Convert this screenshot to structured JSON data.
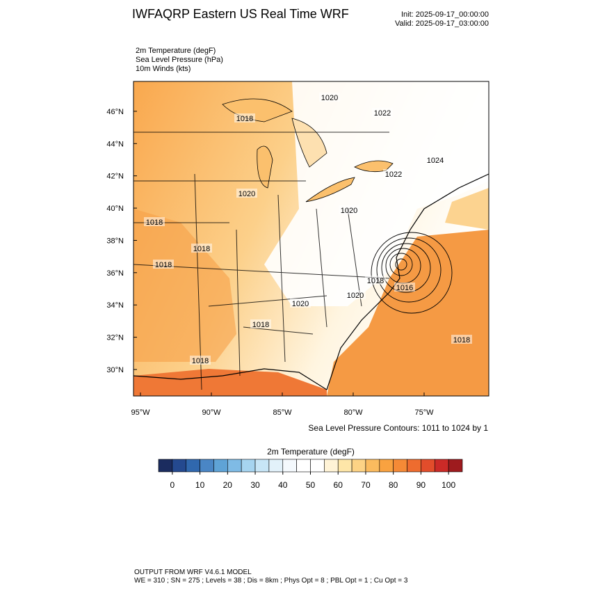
{
  "header": {
    "title": "IWFAQRP Eastern US Real Time WRF",
    "init": "Init: 2025-09-17_00:00:00",
    "valid": "Valid: 2025-09-17_03:00:00"
  },
  "fields": [
    "2m Temperature   (degF)",
    "Sea Level Pressure   (hPa)",
    "10m Winds   (kts)"
  ],
  "map": {
    "lat_range": [
      28.36,
      47.85
    ],
    "lon_range": [
      -95.49,
      -70.44
    ],
    "lat_ticks": [
      {
        "value": 30,
        "label": "30°N"
      },
      {
        "value": 32,
        "label": "32°N"
      },
      {
        "value": 34,
        "label": "34°N"
      },
      {
        "value": 36,
        "label": "36°N"
      },
      {
        "value": 38,
        "label": "38°N"
      },
      {
        "value": 40,
        "label": "40°N"
      },
      {
        "value": 42,
        "label": "42°N"
      },
      {
        "value": 44,
        "label": "44°N"
      },
      {
        "value": 46,
        "label": "46°N"
      }
    ],
    "lon_ticks": [
      {
        "value": -95,
        "label": "95°W"
      },
      {
        "value": -90,
        "label": "90°W"
      },
      {
        "value": -85,
        "label": "85°W"
      },
      {
        "value": -80,
        "label": "80°W"
      },
      {
        "value": -75,
        "label": "75°W"
      }
    ],
    "contour_labels": [
      "1020",
      "1022",
      "1018",
      "1024",
      "1022",
      "1020",
      "1020",
      "1018",
      "1018",
      "1018",
      "1018",
      "1016",
      "1020",
      "1020",
      "1018",
      "1018",
      "1018"
    ]
  },
  "contour_note": "Sea Level Pressure Contours: 1011 to 1024 by 1",
  "colorbar": {
    "title": "2m Temperature  (degF)",
    "step": 5,
    "ticks": [
      0,
      10,
      20,
      30,
      40,
      50,
      60,
      70,
      80,
      90,
      100
    ],
    "colors": [
      "#1b2c5f",
      "#24498f",
      "#3068ae",
      "#4a86c5",
      "#5fa3d6",
      "#7fbbe5",
      "#a6d4f0",
      "#c7e5f6",
      "#e2f1fa",
      "#f4f9fd",
      "#ffffff",
      "#ffffff",
      "#fff3d6",
      "#fee6a8",
      "#fdd385",
      "#fbbb5e",
      "#f9a240",
      "#f58a36",
      "#ee6c2f",
      "#e24d2b",
      "#cb2a27",
      "#9e1b1e"
    ]
  },
  "footer": [
    "OUTPUT FROM WRF V4.6.1 MODEL",
    "WE = 310 ; SN = 275 ; Levels = 38 ; Dis = 8km ; Phys Opt = 8 ; PBL Opt = 1 ; Cu Opt = 3"
  ]
}
